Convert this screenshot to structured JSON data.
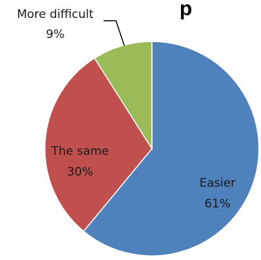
{
  "chart_data": {
    "type": "pie",
    "title_fragment": "p",
    "slices": [
      {
        "label": "Easier",
        "value": 61,
        "value_text": "61%",
        "color": "#4F81BD"
      },
      {
        "label": "The same",
        "value": 30,
        "value_text": "30%",
        "color": "#C0504D"
      },
      {
        "label": "More difficult",
        "value": 9,
        "value_text": "9%",
        "color": "#9BBB59"
      }
    ],
    "start_angle_deg": 0,
    "direction": "clockwise",
    "legend": "none",
    "data_labels": "category and percent"
  }
}
